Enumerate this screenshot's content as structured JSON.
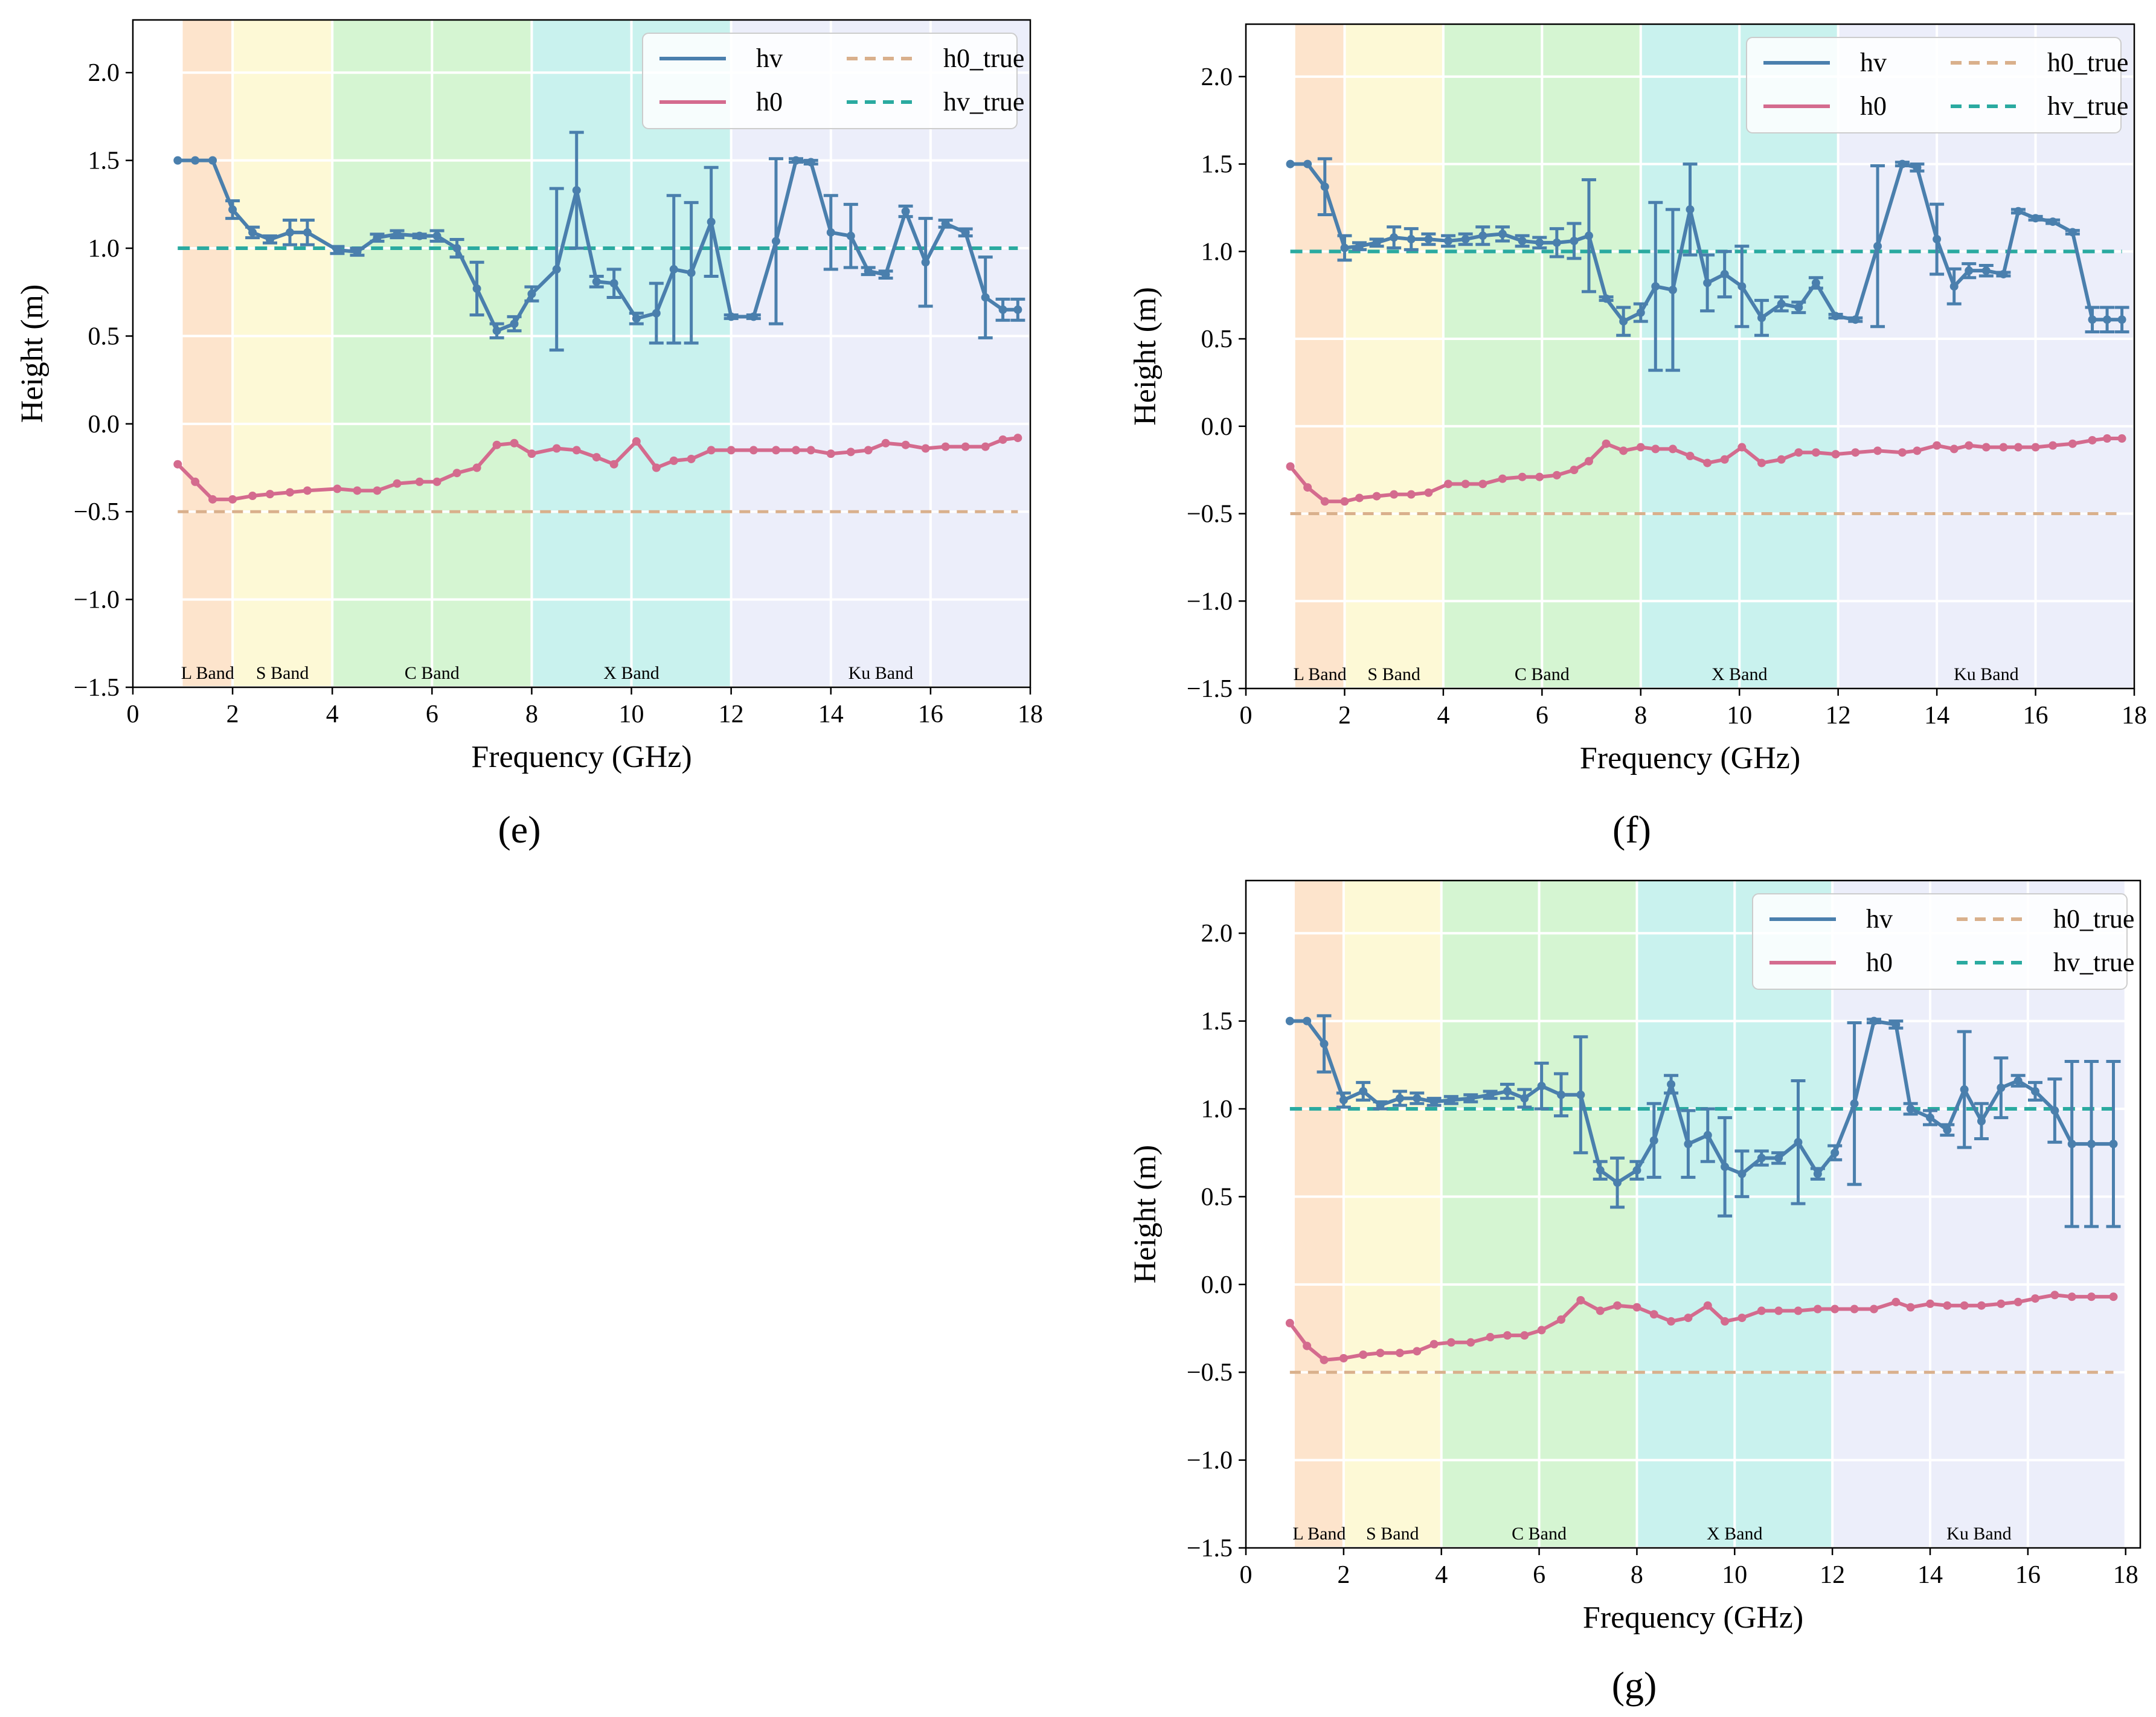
{
  "figure": {
    "captions": [
      "(e)",
      "(f)",
      "(g)"
    ],
    "band_colors": {
      "L Band": "#fde4cc",
      "S Band": "#fdf9d6",
      "C Band": "#d5f5d2",
      "X Band": "#c9f2ee",
      "Ku Band": "#eceefa"
    },
    "series_colors": {
      "hv": "#4a7fad",
      "h0": "#d46b8e",
      "h0_true": "#d9b08c",
      "hv_true": "#2aaaa0"
    }
  },
  "chart_data": [
    {
      "id": "e",
      "type": "line",
      "caption": "(e)",
      "xlabel": "Frequency (GHz)",
      "ylabel": "Height (m)",
      "xlim": [
        0,
        18
      ],
      "ylim": [
        -1.5,
        2.3
      ],
      "xticks": [
        0,
        2,
        4,
        6,
        8,
        10,
        12,
        14,
        16,
        18
      ],
      "xtick_labels": [
        "0",
        "2",
        "4",
        "6",
        "8",
        "10",
        "12",
        "14",
        "16",
        "18"
      ],
      "yticks": [
        -1.5,
        -1.0,
        -0.5,
        0.0,
        0.5,
        1.0,
        1.5,
        2.0
      ],
      "ytick_labels": [
        "−1.5",
        "−1.0",
        "−0.5",
        "0.0",
        "0.5",
        "1.0",
        "1.5",
        "2.0"
      ],
      "bands": [
        {
          "name": "L Band",
          "label": "L Band",
          "from": 1,
          "to": 2
        },
        {
          "name": "S Band",
          "label": "S Band",
          "from": 2,
          "to": 4
        },
        {
          "name": "C Band",
          "label": "C Band",
          "from": 4,
          "to": 8
        },
        {
          "name": "X Band",
          "label": "X Band",
          "from": 8,
          "to": 12
        },
        {
          "name": "Ku Band",
          "label": "Ku Band",
          "from": 12,
          "to": 18
        }
      ],
      "legend": {
        "placement": "top-right",
        "entries": [
          "hv",
          "h0",
          "h0_true",
          "hv_true"
        ]
      },
      "x": [
        0.9,
        1.25,
        1.6,
        2.0,
        2.4,
        2.75,
        3.15,
        3.5,
        4.1,
        4.5,
        4.9,
        5.3,
        5.75,
        6.1,
        6.5,
        6.9,
        7.3,
        7.65,
        8.0,
        8.5,
        8.9,
        9.3,
        9.65,
        10.1,
        10.5,
        10.85,
        11.2,
        11.6,
        12.0,
        12.45,
        12.9,
        13.3,
        13.6,
        14.0,
        14.4,
        14.75,
        15.1,
        15.5,
        15.9,
        16.3,
        16.7,
        17.1,
        17.45,
        17.75
      ],
      "series": [
        {
          "name": "hv",
          "values": [
            1.5,
            1.5,
            1.5,
            1.22,
            1.09,
            1.05,
            1.09,
            1.09,
            0.99,
            0.98,
            1.06,
            1.08,
            1.07,
            1.07,
            1.0,
            0.77,
            0.53,
            0.57,
            0.74,
            0.88,
            1.33,
            0.81,
            0.8,
            0.6,
            0.63,
            0.88,
            0.86,
            1.15,
            0.61,
            0.61,
            1.04,
            1.5,
            1.49,
            1.09,
            1.07,
            0.87,
            0.85,
            1.21,
            0.92,
            1.14,
            1.09,
            0.72,
            0.65,
            0.65
          ],
          "errors": [
            0,
            0,
            0,
            0.05,
            0.03,
            0.02,
            0.07,
            0.07,
            0.02,
            0.02,
            0.02,
            0.02,
            0.01,
            0.03,
            0.05,
            0.15,
            0.04,
            0.04,
            0.04,
            0.46,
            0.33,
            0.03,
            0.08,
            0.03,
            0.17,
            0.42,
            0.4,
            0.31,
            0.01,
            0.01,
            0.47,
            0.01,
            0.01,
            0.21,
            0.18,
            0.02,
            0.02,
            0.03,
            0.25,
            0.02,
            0.02,
            0.23,
            0.06,
            0.06
          ]
        },
        {
          "name": "h0",
          "values": [
            -0.23,
            -0.33,
            -0.43,
            -0.43,
            -0.41,
            -0.4,
            -0.39,
            -0.38,
            -0.37,
            -0.38,
            -0.38,
            -0.34,
            -0.33,
            -0.33,
            -0.28,
            -0.25,
            -0.12,
            -0.11,
            -0.17,
            -0.14,
            -0.15,
            -0.19,
            -0.23,
            -0.1,
            -0.25,
            -0.21,
            -0.2,
            -0.15,
            -0.15,
            -0.15,
            -0.15,
            -0.15,
            -0.15,
            -0.17,
            -0.16,
            -0.15,
            -0.11,
            -0.12,
            -0.14,
            -0.13,
            -0.13,
            -0.13,
            -0.09,
            -0.08
          ]
        },
        {
          "name": "h0_true",
          "constant": -0.5,
          "style": "dashed"
        },
        {
          "name": "hv_true",
          "constant": 1.0,
          "style": "dashed"
        }
      ]
    },
    {
      "id": "f",
      "type": "line",
      "caption": "(f)",
      "xlabel": "Frequency (GHz)",
      "ylabel": "Height (m)",
      "xlim": [
        0,
        18
      ],
      "ylim": [
        -1.5,
        2.3
      ],
      "xticks": [
        0,
        2,
        4,
        6,
        8,
        10,
        12,
        14,
        16,
        18
      ],
      "xtick_labels": [
        "0",
        "2",
        "4",
        "6",
        "8",
        "10",
        "12",
        "14",
        "16",
        "18"
      ],
      "yticks": [
        -1.5,
        -1.0,
        -0.5,
        0.0,
        0.5,
        1.0,
        1.5,
        2.0
      ],
      "ytick_labels": [
        "−1.5",
        "−1.0",
        "−0.5",
        "0.0",
        "0.5",
        "1.0",
        "1.5",
        "2.0"
      ],
      "bands": [
        {
          "name": "L Band",
          "label": "L Band",
          "from": 1,
          "to": 2
        },
        {
          "name": "S Band",
          "label": "S Band",
          "from": 2,
          "to": 4
        },
        {
          "name": "C Band",
          "label": "C Band",
          "from": 4,
          "to": 8
        },
        {
          "name": "X Band",
          "label": "X Band",
          "from": 8,
          "to": 12
        },
        {
          "name": "Ku Band",
          "label": "Ku Band",
          "from": 12,
          "to": 18
        }
      ],
      "legend": {
        "placement": "top-right",
        "entries": [
          "hv",
          "h0",
          "h0_true",
          "hv_true"
        ]
      },
      "x": [
        0.9,
        1.25,
        1.6,
        2.0,
        2.3,
        2.65,
        3.0,
        3.35,
        3.7,
        4.1,
        4.45,
        4.8,
        5.2,
        5.6,
        5.95,
        6.3,
        6.65,
        6.95,
        7.3,
        7.65,
        8.0,
        8.3,
        8.65,
        9.0,
        9.35,
        9.7,
        10.05,
        10.45,
        10.85,
        11.2,
        11.55,
        11.95,
        12.35,
        12.8,
        13.3,
        13.6,
        14.0,
        14.35,
        14.65,
        15.0,
        15.35,
        15.65,
        16.0,
        16.35,
        16.75,
        17.15,
        17.45,
        17.75
      ],
      "series": [
        {
          "name": "hv",
          "values": [
            1.5,
            1.5,
            1.37,
            1.02,
            1.03,
            1.05,
            1.08,
            1.07,
            1.07,
            1.06,
            1.07,
            1.09,
            1.1,
            1.06,
            1.05,
            1.05,
            1.06,
            1.09,
            0.73,
            0.6,
            0.65,
            0.8,
            0.78,
            1.24,
            0.82,
            0.87,
            0.8,
            0.62,
            0.7,
            0.68,
            0.82,
            0.63,
            0.61,
            1.03,
            1.5,
            1.48,
            1.07,
            0.8,
            0.89,
            0.89,
            0.87,
            1.23,
            1.19,
            1.17,
            1.11,
            0.61,
            0.61,
            0.61
          ],
          "errors": [
            0,
            0,
            0.16,
            0.07,
            0.02,
            0.02,
            0.06,
            0.06,
            0.03,
            0.03,
            0.03,
            0.05,
            0.04,
            0.03,
            0.03,
            0.08,
            0.1,
            0.32,
            0.01,
            0.08,
            0.05,
            0.48,
            0.46,
            0.26,
            0.16,
            0.13,
            0.23,
            0.1,
            0.04,
            0.03,
            0.03,
            0.01,
            0.01,
            0.46,
            0.01,
            0.02,
            0.2,
            0.1,
            0.04,
            0.03,
            0.01,
            0.01,
            0.01,
            0.01,
            0.01,
            0.07,
            0.07,
            0.07
          ]
        },
        {
          "name": "h0",
          "values": [
            -0.23,
            -0.35,
            -0.43,
            -0.43,
            -0.41,
            -0.4,
            -0.39,
            -0.39,
            -0.38,
            -0.33,
            -0.33,
            -0.33,
            -0.3,
            -0.29,
            -0.29,
            -0.28,
            -0.25,
            -0.2,
            -0.1,
            -0.14,
            -0.12,
            -0.13,
            -0.13,
            -0.17,
            -0.21,
            -0.19,
            -0.12,
            -0.21,
            -0.19,
            -0.15,
            -0.15,
            -0.16,
            -0.15,
            -0.14,
            -0.15,
            -0.14,
            -0.11,
            -0.13,
            -0.11,
            -0.12,
            -0.12,
            -0.12,
            -0.12,
            -0.11,
            -0.1,
            -0.08,
            -0.07,
            -0.07
          ]
        },
        {
          "name": "h0_true",
          "constant": -0.5,
          "style": "dashed"
        },
        {
          "name": "hv_true",
          "constant": 1.0,
          "style": "dashed"
        }
      ]
    },
    {
      "id": "g",
      "type": "line",
      "caption": "(g)",
      "xlabel": "Frequency (GHz)",
      "ylabel": "Height (m)",
      "xlim": [
        0,
        18.3
      ],
      "ylim": [
        -1.5,
        2.3
      ],
      "xticks": [
        0,
        2,
        4,
        6,
        8,
        10,
        12,
        14,
        16,
        18
      ],
      "xtick_labels": [
        "0",
        "2",
        "4",
        "6",
        "8",
        "10",
        "12",
        "14",
        "16",
        "18"
      ],
      "yticks": [
        -1.5,
        -1.0,
        -0.5,
        0.0,
        0.5,
        1.0,
        1.5,
        2.0
      ],
      "ytick_labels": [
        "−1.5",
        "−1.0",
        "−0.5",
        "0.0",
        "0.5",
        "1.0",
        "1.5",
        "2.0"
      ],
      "bands": [
        {
          "name": "L Band",
          "label": "L Band",
          "from": 1,
          "to": 2
        },
        {
          "name": "S Band",
          "label": "S Band",
          "from": 2,
          "to": 4
        },
        {
          "name": "C Band",
          "label": "C Band",
          "from": 4,
          "to": 8
        },
        {
          "name": "X Band",
          "label": "X Band",
          "from": 8,
          "to": 12
        },
        {
          "name": "Ku Band",
          "label": "Ku Band",
          "from": 12,
          "to": 18
        }
      ],
      "legend": {
        "placement": "top-right",
        "entries": [
          "hv",
          "h0",
          "h0_true",
          "hv_true"
        ]
      },
      "x": [
        0.9,
        1.25,
        1.6,
        2.0,
        2.4,
        2.75,
        3.15,
        3.5,
        3.85,
        4.2,
        4.6,
        5.0,
        5.35,
        5.7,
        6.05,
        6.45,
        6.85,
        7.25,
        7.6,
        8.0,
        8.35,
        8.7,
        9.05,
        9.45,
        9.8,
        10.15,
        10.55,
        10.9,
        11.3,
        11.7,
        12.05,
        12.45,
        12.85,
        13.3,
        13.6,
        14.0,
        14.35,
        14.7,
        15.05,
        15.45,
        15.8,
        16.15,
        16.55,
        16.9,
        17.3,
        17.75
      ],
      "series": [
        {
          "name": "hv",
          "values": [
            1.5,
            1.5,
            1.37,
            1.05,
            1.1,
            1.02,
            1.06,
            1.06,
            1.04,
            1.05,
            1.06,
            1.08,
            1.1,
            1.06,
            1.13,
            1.08,
            1.08,
            0.65,
            0.58,
            0.65,
            0.82,
            1.14,
            0.8,
            0.85,
            0.67,
            0.63,
            0.72,
            0.72,
            0.81,
            0.63,
            0.75,
            1.03,
            1.5,
            1.48,
            1.0,
            0.95,
            0.88,
            1.11,
            0.93,
            1.12,
            1.16,
            1.1,
            0.99,
            0.8,
            0.8,
            0.8
          ],
          "errors": [
            0,
            0,
            0.16,
            0.04,
            0.05,
            0.02,
            0.04,
            0.03,
            0.02,
            0.02,
            0.02,
            0.02,
            0.04,
            0.05,
            0.13,
            0.12,
            0.33,
            0.05,
            0.14,
            0.05,
            0.21,
            0.05,
            0.19,
            0.15,
            0.28,
            0.13,
            0.04,
            0.03,
            0.35,
            0.03,
            0.04,
            0.46,
            0.01,
            0.02,
            0.03,
            0.04,
            0.03,
            0.33,
            0.1,
            0.17,
            0.03,
            0.05,
            0.18,
            0.47,
            0.47,
            0.47
          ]
        },
        {
          "name": "h0",
          "values": [
            -0.22,
            -0.35,
            -0.43,
            -0.42,
            -0.4,
            -0.39,
            -0.39,
            -0.38,
            -0.34,
            -0.33,
            -0.33,
            -0.3,
            -0.29,
            -0.29,
            -0.26,
            -0.2,
            -0.09,
            -0.15,
            -0.12,
            -0.13,
            -0.17,
            -0.21,
            -0.19,
            -0.12,
            -0.21,
            -0.19,
            -0.15,
            -0.15,
            -0.15,
            -0.14,
            -0.14,
            -0.14,
            -0.14,
            -0.1,
            -0.13,
            -0.11,
            -0.12,
            -0.12,
            -0.12,
            -0.11,
            -0.1,
            -0.08,
            -0.06,
            -0.07,
            -0.07,
            -0.07
          ]
        },
        {
          "name": "h0_true",
          "constant": -0.5,
          "style": "dashed"
        },
        {
          "name": "hv_true",
          "constant": 1.0,
          "style": "dashed"
        }
      ]
    }
  ]
}
